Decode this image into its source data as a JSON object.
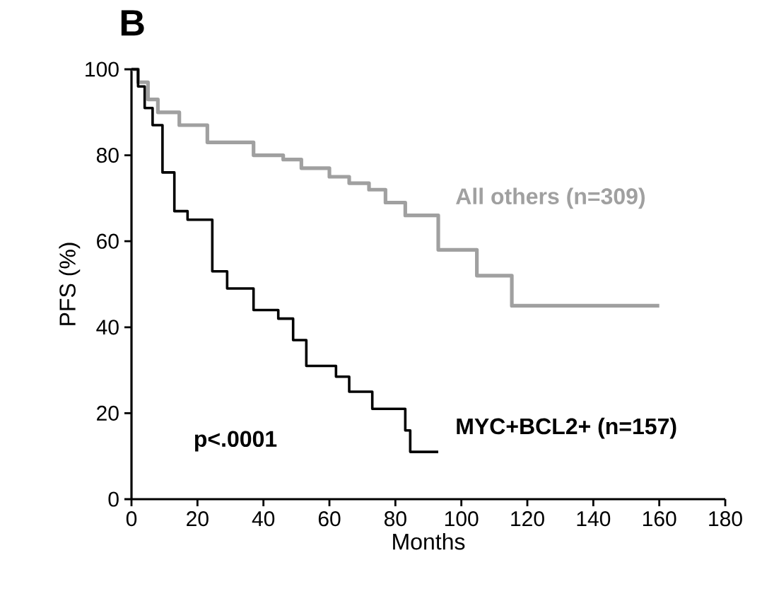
{
  "chart_data": {
    "type": "step",
    "title": "B",
    "xlabel": "Months",
    "ylabel": "PFS (%)",
    "annotations": [
      "p<.0001"
    ],
    "xlim": [
      0,
      180
    ],
    "xticks": [
      0,
      20,
      40,
      60,
      80,
      100,
      120,
      140,
      160,
      180
    ],
    "ylim": [
      0,
      100
    ],
    "yticks": [
      0,
      20,
      40,
      60,
      80,
      100
    ],
    "grid": false,
    "legend": false,
    "series": [
      {
        "name": "All others (n=309)",
        "color": "#a0a0a0",
        "x": [
          0,
          2,
          5,
          8,
          14.5,
          23,
          37,
          46,
          51.5,
          60,
          66,
          72,
          77,
          83,
          93,
          104.7,
          115.3,
          160
        ],
        "values": [
          100,
          97,
          93,
          90,
          87,
          83,
          80,
          79,
          77,
          75,
          73.5,
          72,
          69,
          66,
          58,
          52,
          45,
          45
        ]
      },
      {
        "name": "MYC+BCL2+ (n=157)",
        "color": "#000000",
        "x": [
          0,
          2,
          4,
          6.4,
          9.4,
          13,
          17,
          24.5,
          29,
          37,
          44.5,
          49,
          53,
          62,
          66,
          73,
          83,
          84.5,
          93
        ],
        "values": [
          100,
          96,
          91,
          87,
          76,
          67,
          65,
          53,
          49,
          44,
          42,
          37,
          31,
          28.5,
          25,
          21,
          16,
          11,
          11
        ]
      }
    ]
  }
}
